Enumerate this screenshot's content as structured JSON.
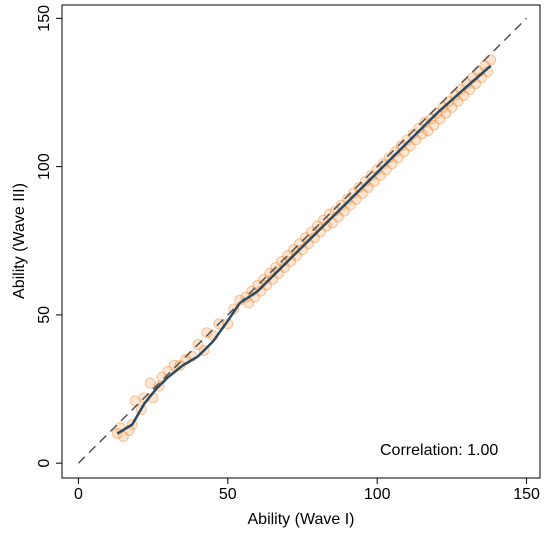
{
  "chart_data": {
    "type": "scatter",
    "x_label": "Ability (Wave I)",
    "y_label": "Ability (Wave III)",
    "annotation": "Correlation: 1.00",
    "xlim": [
      -5.5,
      154.5
    ],
    "ylim": [
      -5,
      154.5
    ],
    "xticks": [
      0,
      50,
      100,
      150
    ],
    "yticks": [
      0,
      50,
      100,
      150
    ],
    "point_color": "#f08a32",
    "x": [
      13,
      14,
      15,
      17,
      18,
      19,
      21,
      22,
      24,
      25,
      27,
      28,
      30,
      32,
      34,
      36,
      38,
      40,
      42,
      43,
      45,
      47,
      50,
      52,
      54,
      56,
      58,
      60,
      62,
      64,
      66,
      68,
      70,
      72,
      74,
      76,
      78,
      80,
      82,
      84,
      86,
      88,
      90,
      92,
      94,
      96,
      98,
      100,
      102,
      104,
      106,
      108,
      110,
      112,
      114,
      116,
      118,
      120,
      122,
      124,
      126,
      128,
      130,
      132,
      134,
      136,
      138,
      57,
      59,
      61,
      63,
      65,
      67,
      69,
      71,
      73,
      75,
      77,
      79,
      81,
      83,
      85,
      87,
      89,
      91,
      93,
      95,
      97,
      99,
      101,
      103,
      105,
      107,
      109,
      111,
      113,
      115,
      117,
      119,
      121,
      123,
      125,
      127,
      129,
      131,
      133,
      135,
      137
    ],
    "y": [
      10,
      12,
      9,
      11,
      13,
      21,
      18,
      22,
      27,
      22,
      26,
      29,
      31,
      33,
      33,
      35,
      36,
      40,
      38,
      44,
      43,
      47,
      47,
      52,
      55,
      56,
      58,
      60,
      62,
      64,
      66,
      68,
      70,
      72,
      74,
      76,
      78,
      80,
      82,
      84,
      85,
      87,
      89,
      91,
      93,
      95,
      97,
      99,
      101,
      103,
      105,
      107,
      109,
      111,
      113,
      115,
      116,
      118,
      120,
      122,
      124,
      126,
      128,
      130,
      132,
      134,
      136,
      54,
      56,
      58,
      60,
      62,
      64,
      66,
      68,
      70,
      72,
      74,
      76,
      78,
      80,
      81,
      83,
      85,
      87,
      89,
      91,
      93,
      95,
      97,
      99,
      101,
      103,
      105,
      107,
      109,
      111,
      112,
      114,
      116,
      118,
      120,
      122,
      124,
      126,
      128,
      130,
      132
    ],
    "fit_line": {
      "color": "#2a4a62",
      "x": [
        13,
        18,
        22,
        26,
        30,
        35,
        40,
        45,
        50,
        54,
        60,
        70,
        80,
        90,
        100,
        110,
        120,
        130,
        138
      ],
      "y": [
        10,
        13,
        20,
        25,
        29,
        33,
        36,
        41,
        48,
        54,
        58,
        68,
        78,
        88,
        98,
        108,
        118,
        127,
        134
      ]
    },
    "reference_line": {
      "color": "#555555",
      "x": [
        0,
        150
      ],
      "y": [
        0,
        150
      ]
    }
  }
}
